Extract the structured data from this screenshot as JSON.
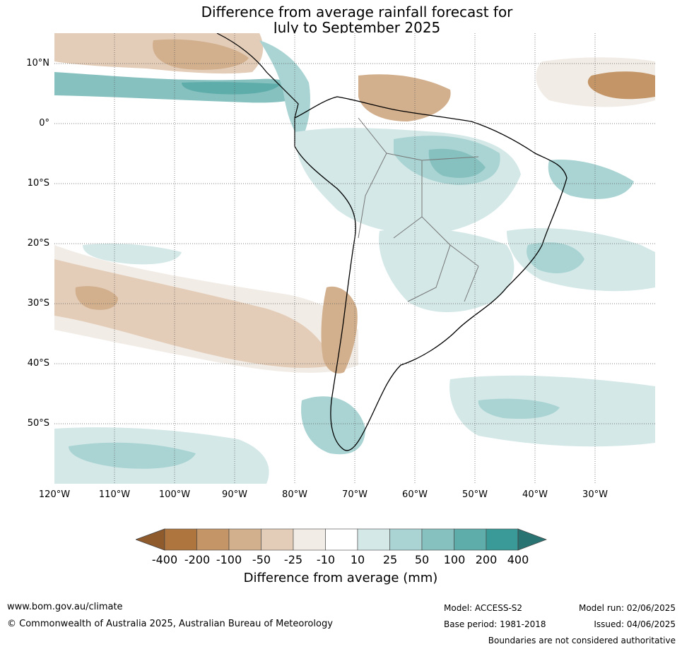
{
  "title": {
    "line1": "Difference from average rainfall forecast for",
    "line2": "July to September 2025"
  },
  "map": {
    "region": "South America",
    "lat_labels": [
      "10°N",
      "0°",
      "10°S",
      "20°S",
      "30°S",
      "40°S",
      "50°S"
    ],
    "lon_labels": [
      "120°W",
      "110°W",
      "100°W",
      "90°W",
      "80°W",
      "70°W",
      "60°W",
      "50°W",
      "40°W",
      "30°W"
    ],
    "gridlines": true
  },
  "colorbar": {
    "ticks": [
      "-400",
      "-200",
      "-100",
      "-50",
      "-25",
      "-10",
      "10",
      "25",
      "50",
      "100",
      "200",
      "400"
    ],
    "colors": [
      "#8f5a2c",
      "#ae763e",
      "#c39567",
      "#d2af8d",
      "#e3cdb8",
      "#f2ece6",
      "#ffffff",
      "#d3e8e7",
      "#a9d4d3",
      "#86c1bf",
      "#5eadaa",
      "#3a9a97",
      "#2a7373"
    ],
    "label": "Difference from average (mm)"
  },
  "footer": {
    "website": "www.bom.gov.au/climate",
    "copyright": "© Commonwealth of Australia 2025, Australian Bureau of Meteorology",
    "model": "Model: ACCESS-S2",
    "base_period": "Base period: 1981-2018",
    "model_run": "Model run: 02/06/2025",
    "issued": "Issued: 04/06/2025",
    "disclaimer": "Boundaries are not considered authoritative"
  }
}
